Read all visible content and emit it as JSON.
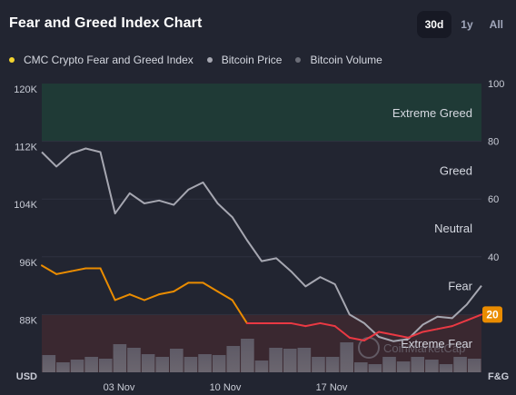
{
  "header": {
    "title": "Fear and Greed Index Chart",
    "tabs": [
      {
        "label": "30d",
        "active": true
      },
      {
        "label": "1y",
        "active": false
      },
      {
        "label": "All",
        "active": false
      }
    ]
  },
  "legend": [
    {
      "label": "CMC Crypto Fear and Greed Index",
      "color": "#f3d42f"
    },
    {
      "label": "Bitcoin Price",
      "color": "#a6a7b1"
    },
    {
      "label": "Bitcoin Volume",
      "color": "#6c6e78"
    }
  ],
  "watermark": "CoinMarketCap",
  "chart_data": {
    "type": "line",
    "x_tick_labels": [
      "03 Nov",
      "10 Nov",
      "17 Nov"
    ],
    "left_axis": {
      "ticks": [
        "120K",
        "112K",
        "104K",
        "96K",
        "88K"
      ],
      "range": [
        80000,
        120000
      ],
      "unit_label": "USD"
    },
    "right_axis": {
      "ticks": [
        "100",
        "80",
        "60",
        "40"
      ],
      "range": [
        0,
        100
      ],
      "unit_label": "F&G"
    },
    "zones": [
      {
        "label": "Extreme Greed",
        "range": [
          80,
          100
        ]
      },
      {
        "label": "Greed",
        "range": [
          60,
          80
        ]
      },
      {
        "label": "Neutral",
        "range": [
          40,
          60
        ]
      },
      {
        "label": "Fear",
        "range": [
          20,
          40
        ]
      },
      {
        "label": "Extreme Fear",
        "range": [
          0,
          20
        ]
      }
    ],
    "current_index": "20",
    "series": [
      {
        "name": "Bitcoin Price",
        "color": "#a6a7b1",
        "x": [
          0,
          1,
          2,
          3,
          4,
          5,
          6,
          7,
          8,
          9,
          10,
          11,
          12,
          13,
          14,
          15,
          16,
          17,
          18,
          19,
          20,
          21,
          22,
          23,
          24,
          25,
          26,
          27,
          28,
          29,
          30
        ],
        "values": [
          110500,
          108500,
          110300,
          111000,
          110500,
          102000,
          104800,
          103400,
          103800,
          103200,
          105300,
          106300,
          103400,
          101500,
          98300,
          95400,
          95800,
          94000,
          91900,
          93200,
          92200,
          88000,
          86800,
          84900,
          84300,
          84600,
          86600,
          87700,
          87500,
          89400,
          92000
        ]
      },
      {
        "name": "CMC Crypto Fear and Greed Index",
        "x": [
          0,
          1,
          2,
          3,
          4,
          5,
          6,
          7,
          8,
          9,
          10,
          11,
          12,
          13,
          14,
          15,
          16,
          17,
          18,
          19,
          20,
          21,
          22,
          23,
          24,
          25,
          26,
          27,
          28,
          29,
          30
        ],
        "values": [
          37,
          34,
          35,
          36,
          36,
          25,
          27,
          25,
          27,
          28,
          31,
          31,
          28,
          25,
          17,
          17,
          17,
          17,
          16,
          17,
          16,
          12,
          11,
          14,
          13,
          12,
          14,
          15,
          16,
          18,
          20
        ]
      },
      {
        "name": "Bitcoin Volume",
        "type": "bar",
        "color": "#5c5c68",
        "x": [
          0,
          1,
          2,
          3,
          4,
          5,
          6,
          7,
          8,
          9,
          10,
          11,
          12,
          13,
          14,
          15,
          16,
          17,
          18,
          19,
          20,
          21,
          22,
          23,
          24,
          25,
          26,
          27,
          28,
          29,
          30
        ],
        "values": [
          0.95,
          0.55,
          0.7,
          0.85,
          0.75,
          1.55,
          1.35,
          1.0,
          0.85,
          1.3,
          0.85,
          1.0,
          0.95,
          1.45,
          1.85,
          0.65,
          1.35,
          1.3,
          1.35,
          0.85,
          0.85,
          1.65,
          0.55,
          0.45,
          0.85,
          0.6,
          0.85,
          0.7,
          0.45,
          0.85,
          0.75
        ]
      }
    ]
  }
}
